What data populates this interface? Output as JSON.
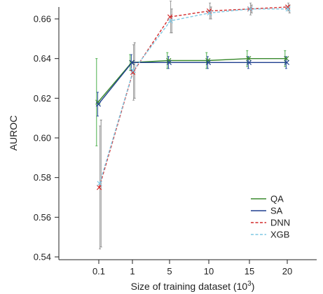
{
  "chart_data": {
    "type": "line",
    "categories": [
      "0.1",
      "1",
      "5",
      "10",
      "15",
      "20"
    ],
    "xlabel": "Size of training dataset (10",
    "xlabel_sup": "3",
    "xlabel_close": ")",
    "ylabel": "AUROC",
    "ylim": [
      0.538,
      0.676
    ],
    "yticks": [
      "0.54",
      "0.56",
      "0.58",
      "0.60",
      "0.62",
      "0.64",
      "0.66"
    ],
    "legend_position": "bottom-right",
    "grid": false,
    "series": [
      {
        "name": "QA",
        "color": "#3a8a2e",
        "dash": "solid",
        "values": [
          0.618,
          0.638,
          0.639,
          0.639,
          0.64,
          0.64
        ],
        "err": [
          0.022,
          0.004,
          0.004,
          0.004,
          0.004,
          0.004
        ],
        "err_color": "#4caf4c"
      },
      {
        "name": "SA",
        "color": "#1f3f8f",
        "dash": "solid",
        "values": [
          0.617,
          0.638,
          0.638,
          0.638,
          0.638,
          0.638
        ],
        "err": [
          0.006,
          0.004,
          0.003,
          0.003,
          0.003,
          0.003
        ],
        "err_color": "#2b4fa0"
      },
      {
        "name": "DNN",
        "color": "#d42a2a",
        "dash": "dashed",
        "values": [
          0.575,
          0.633,
          0.661,
          0.664,
          0.665,
          0.666
        ],
        "err": [
          0.031,
          0.014,
          0.008,
          0.004,
          0.003,
          0.002
        ],
        "err_color": "#999999"
      },
      {
        "name": "XGB",
        "color": "#7ec8e3",
        "dash": "dashed",
        "values": [
          0.577,
          0.634,
          0.659,
          0.663,
          0.665,
          0.665
        ],
        "err": [
          0.032,
          0.014,
          0.006,
          0.003,
          0.002,
          0.002
        ],
        "err_color": "#888888"
      }
    ]
  }
}
